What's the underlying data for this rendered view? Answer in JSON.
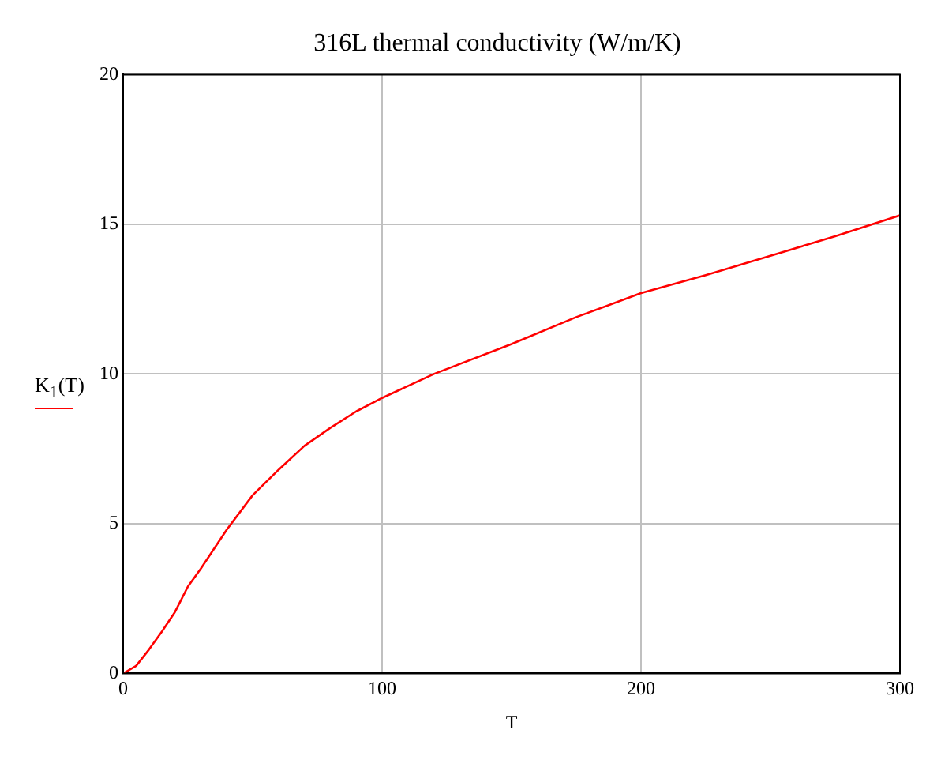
{
  "chart_data": {
    "type": "line",
    "title": "316L thermal conductivity (W/m/K)",
    "xlabel": "T",
    "series": [
      {
        "name": "K$_{1}$(T)",
        "color": "#ff0000",
        "x": [
          0,
          5,
          10,
          15,
          20,
          25,
          30,
          40,
          50,
          60,
          70,
          80,
          90,
          100,
          120,
          150,
          175,
          200,
          225,
          250,
          275,
          300
        ],
        "values": [
          0,
          0.25,
          0.8,
          1.4,
          2.05,
          2.9,
          3.5,
          4.8,
          5.95,
          6.8,
          7.6,
          8.2,
          8.75,
          9.2,
          10.0,
          11.0,
          11.9,
          12.7,
          13.3,
          13.95,
          14.6,
          15.3
        ]
      }
    ],
    "xlim": [
      0,
      300
    ],
    "xticks": [
      0,
      100,
      200,
      300
    ],
    "ylim": [
      0,
      20
    ],
    "yticks": [
      0,
      5,
      10,
      15,
      20
    ],
    "grid": true,
    "legend": "left",
    "marker": "none",
    "line_style": "solid"
  }
}
